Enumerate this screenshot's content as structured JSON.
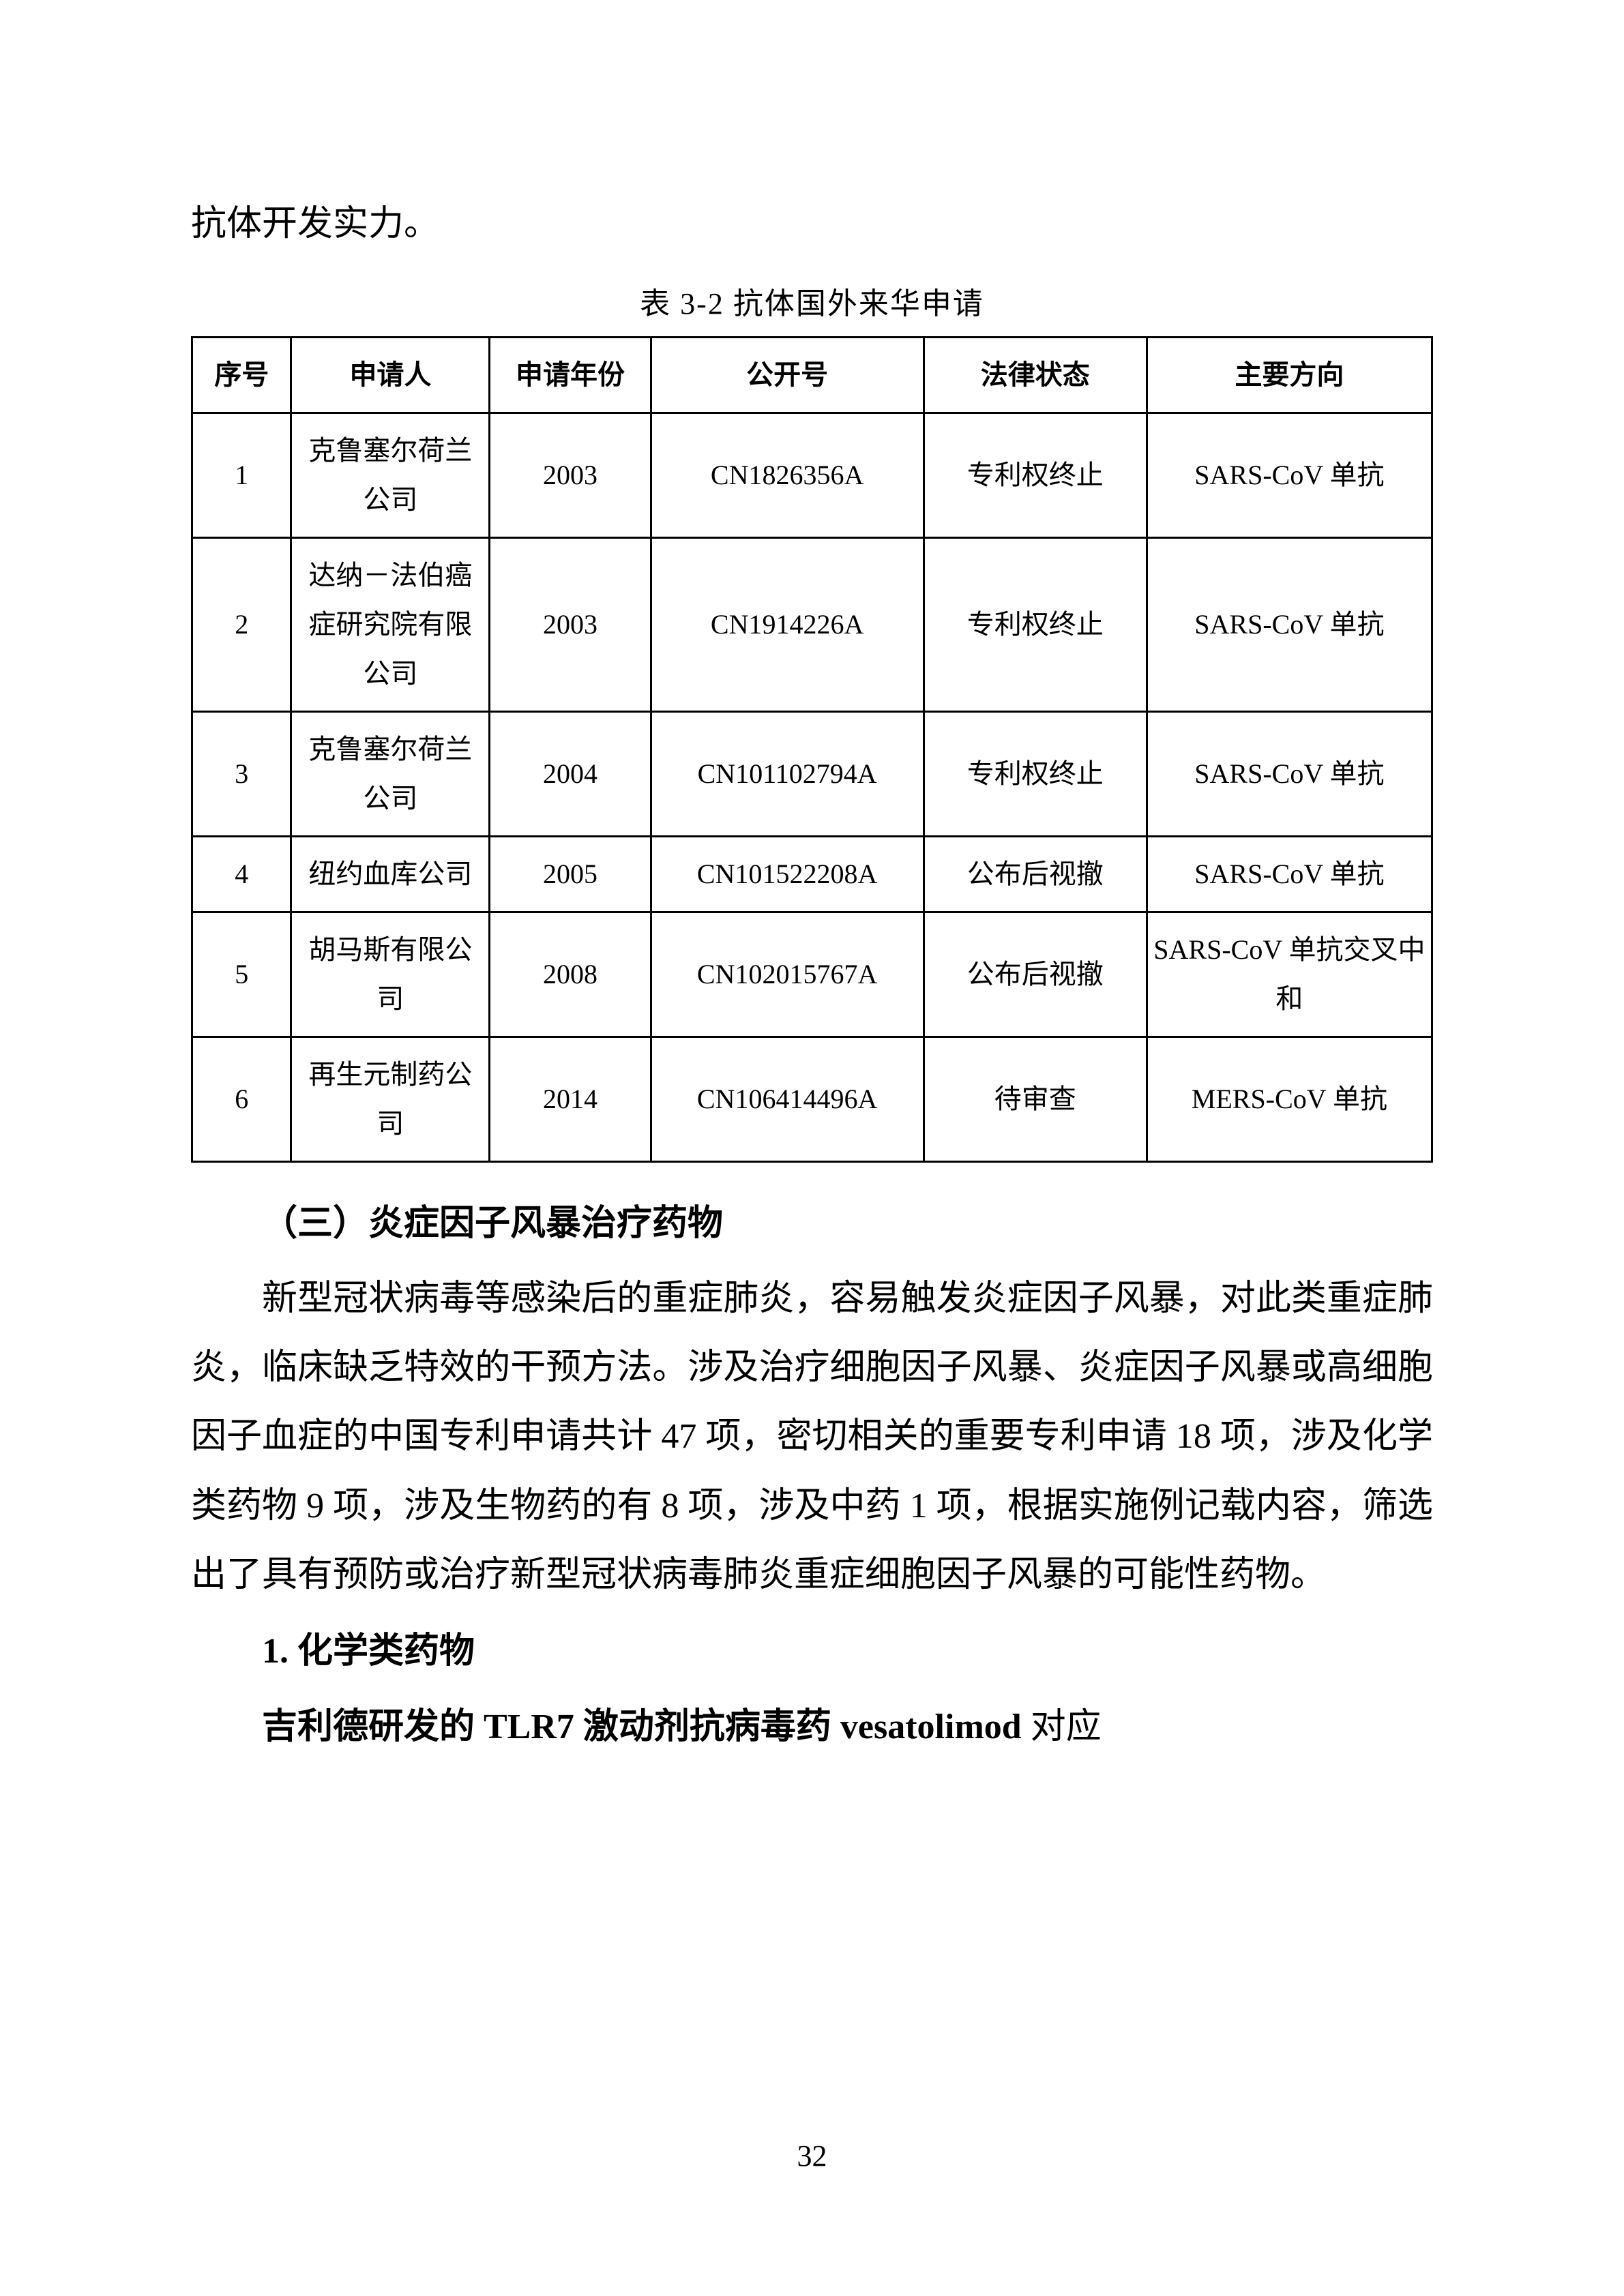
{
  "intro_tail": "抗体开发实力。",
  "table": {
    "caption": "表 3-2 抗体国外来华申请",
    "headers": [
      "序号",
      "申请人",
      "申请年份",
      "公开号",
      "法律状态",
      "主要方向"
    ],
    "rows": [
      [
        "1",
        "克鲁塞尔荷兰公司",
        "2003",
        "CN1826356A",
        "专利权终止",
        "SARS-CoV 单抗"
      ],
      [
        "2",
        "达纳－法伯癌症研究院有限公司",
        "2003",
        "CN1914226A",
        "专利权终止",
        "SARS-CoV 单抗"
      ],
      [
        "3",
        "克鲁塞尔荷兰公司",
        "2004",
        "CN101102794A",
        "专利权终止",
        "SARS-CoV 单抗"
      ],
      [
        "4",
        "纽约血库公司",
        "2005",
        "CN101522208A",
        "公布后视撤",
        "SARS-CoV 单抗"
      ],
      [
        "5",
        "胡马斯有限公司",
        "2008",
        "CN102015767A",
        "公布后视撤",
        "SARS-CoV 单抗交叉中和"
      ],
      [
        "6",
        "再生元制药公司",
        "2014",
        "CN106414496A",
        "待审查",
        "MERS-CoV 单抗"
      ]
    ]
  },
  "section_heading": "（三）炎症因子风暴治疗药物",
  "body_para": "新型冠状病毒等感染后的重症肺炎，容易触发炎症因子风暴，对此类重症肺炎，临床缺乏特效的干预方法。涉及治疗细胞因子风暴、炎症因子风暴或高细胞因子血症的中国专利申请共计 47 项，密切相关的重要专利申请 18 项，涉及化学类药物 9 项，涉及生物药的有 8 项，涉及中药 1 项，根据实施例记载内容，筛选出了具有预防或治疗新型冠状病毒肺炎重症细胞因子风暴的可能性药物。",
  "sub_heading_1": "1. 化学类药物",
  "last_line_bold": "吉利德研发的 TLR7 激动剂抗病毒药 vesatolimod",
  "last_line_tail": " 对应",
  "page_number": "32"
}
